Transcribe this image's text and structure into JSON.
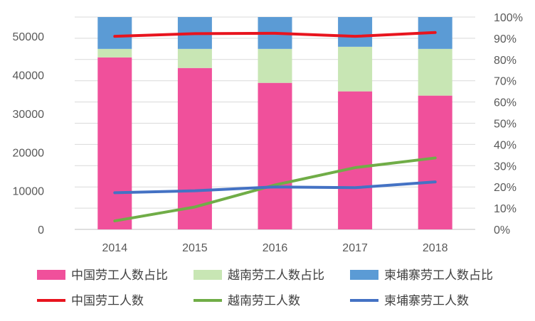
{
  "chart_data": {
    "type": "bar",
    "title": "",
    "xlabel": "",
    "ylabel": "",
    "categories": [
      "2014",
      "2015",
      "2016",
      "2017",
      "2018"
    ],
    "ylim_left": [
      0,
      55000
    ],
    "ylim_right": [
      0,
      1.0
    ],
    "left_ticks": [
      "0",
      "10000",
      "20000",
      "30000",
      "40000",
      "50000"
    ],
    "right_ticks": [
      "0%",
      "10%",
      "20%",
      "30%",
      "40%",
      "50%",
      "60%",
      "70%",
      "80%",
      "90%",
      "100%"
    ],
    "grid": true,
    "legend_position": "bottom",
    "bar_series": [
      {
        "name": "中国劳工人数占比",
        "color": "#F0509B",
        "values": [
          0.81,
          0.76,
          0.69,
          0.65,
          0.63
        ]
      },
      {
        "name": "越南劳工人数占比",
        "color": "#C8E6B4",
        "values": [
          0.04,
          0.09,
          0.16,
          0.21,
          0.22
        ]
      },
      {
        "name": "柬埔寨劳工人数占比",
        "color": "#5B9BD5",
        "values": [
          0.15,
          0.15,
          0.15,
          0.14,
          0.15
        ]
      }
    ],
    "line_series": [
      {
        "name": "中国劳工人数",
        "color": "#E8141E",
        "values": [
          50000,
          50700,
          50800,
          50000,
          51000
        ]
      },
      {
        "name": "越南劳工人数",
        "color": "#70AD47",
        "values": [
          2200,
          5800,
          11500,
          16000,
          18500
        ]
      },
      {
        "name": "柬埔寨劳工人数",
        "color": "#4472C4",
        "values": [
          9500,
          10000,
          11000,
          10800,
          12300
        ]
      }
    ]
  }
}
